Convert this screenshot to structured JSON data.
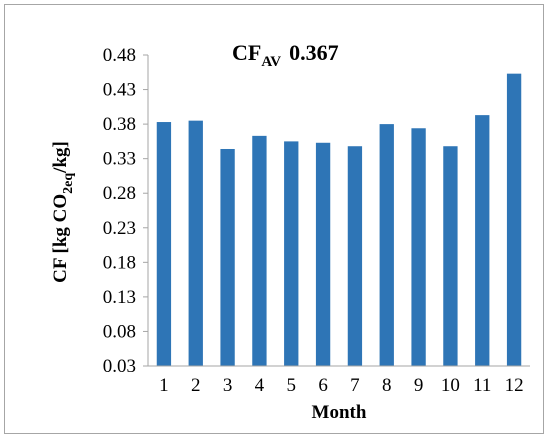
{
  "chart_data": {
    "type": "bar",
    "title": {
      "main": "CF",
      "sub": "AV",
      "value": "0.367"
    },
    "xlabel": "Month",
    "ylabel": {
      "prefix": "CF [kg CO",
      "sub": "2eq",
      "suffix": "/kg]"
    },
    "categories": [
      "1",
      "2",
      "3",
      "4",
      "5",
      "6",
      "7",
      "8",
      "9",
      "10",
      "11",
      "12"
    ],
    "values": [
      0.383,
      0.385,
      0.344,
      0.363,
      0.355,
      0.353,
      0.348,
      0.38,
      0.374,
      0.348,
      0.393,
      0.453
    ],
    "ylim": [
      0.03,
      0.48
    ],
    "yticks": [
      "0.03",
      "0.08",
      "0.13",
      "0.18",
      "0.23",
      "0.28",
      "0.33",
      "0.38",
      "0.43",
      "0.48"
    ],
    "grid": false,
    "legend": "none",
    "bar_color": "#2e75b6"
  }
}
